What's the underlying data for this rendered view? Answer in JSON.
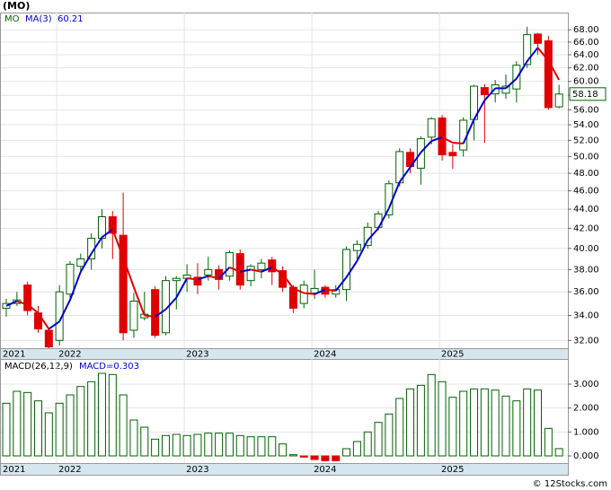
{
  "chart_data": [
    {
      "type": "candlestick",
      "title": "(MO)",
      "categories": [
        "2021",
        null,
        null,
        null,
        null,
        "2022",
        null,
        null,
        null,
        null,
        null,
        null,
        null,
        null,
        null,
        null,
        null,
        "2023",
        null,
        null,
        null,
        null,
        null,
        null,
        null,
        null,
        null,
        null,
        null,
        "2024",
        null,
        null,
        null,
        null,
        null,
        null,
        null,
        null,
        null,
        null,
        null,
        "2025",
        null,
        null,
        null,
        null,
        null,
        null,
        null,
        null,
        null,
        null,
        null
      ],
      "series": [
        {
          "name": "MO",
          "up_color": "#006400",
          "down_color": "#e00000",
          "open": [
            34.6,
            35,
            36.6,
            34.2,
            32.8,
            32,
            35.8,
            38.3,
            39,
            41,
            43.2,
            41.3,
            32.8,
            33.8,
            36.2,
            32.6,
            37,
            37.2,
            37.3,
            37.5,
            38,
            37.4,
            39.5,
            37,
            38,
            38.9,
            37.9,
            36.4,
            35,
            35.9,
            36.4,
            35.8,
            36.2,
            39.8,
            40.3,
            42.1,
            43.4,
            46.9,
            50.5,
            48.6,
            52.4,
            54.9,
            50.5,
            50.8,
            54.7,
            59.1,
            58.2,
            58.3,
            58.9,
            62.5,
            67.3,
            66.2,
            56.4
          ],
          "high": [
            35.4,
            36,
            36.9,
            34.8,
            33,
            36.6,
            38.8,
            39.5,
            41.5,
            44,
            43.8,
            45.8,
            35.9,
            36,
            36.5,
            37.4,
            37.4,
            38.5,
            38.6,
            39.2,
            38.4,
            39.8,
            39.9,
            38.5,
            39,
            39.2,
            38.3,
            36.6,
            37,
            38,
            36.6,
            36.6,
            40.2,
            40.8,
            42.6,
            43.8,
            47.2,
            51,
            51,
            52.5,
            55,
            55.3,
            51.5,
            55,
            59.5,
            59.6,
            60.2,
            61,
            63,
            68.5,
            67.5,
            67,
            59.5
          ],
          "low": [
            33.9,
            34.8,
            34,
            32.6,
            31.4,
            31.6,
            35.5,
            37.8,
            38,
            40,
            39,
            32,
            32.2,
            33.6,
            32.2,
            32.4,
            34.5,
            36,
            35.8,
            37,
            36.2,
            37,
            36.2,
            36.5,
            37.2,
            36.6,
            36,
            34.2,
            34.6,
            35.4,
            35.5,
            35.5,
            35.2,
            39,
            40,
            41.8,
            43,
            46.5,
            48,
            46.7,
            51.5,
            49.5,
            48.5,
            50,
            52,
            51.7,
            57,
            57.5,
            57,
            62,
            64,
            56,
            56.2
          ],
          "close": [
            35,
            35.3,
            34.4,
            32.9,
            31.5,
            36,
            38.5,
            39,
            41,
            43.2,
            41.5,
            32.6,
            35.2,
            34.1,
            32.4,
            37,
            37.2,
            37.5,
            36.6,
            38,
            37.1,
            39.6,
            36.6,
            38.3,
            38.6,
            37.8,
            36.4,
            34.6,
            36.6,
            36.3,
            35.8,
            36.2,
            39.9,
            40.4,
            42.1,
            43.5,
            46.8,
            50.6,
            48.8,
            52.2,
            54.8,
            50.2,
            50.1,
            54.6,
            59.3,
            58.1,
            59.5,
            59.3,
            62.4,
            67.2,
            65.8,
            56.3,
            58.18
          ]
        }
      ],
      "ma": {
        "name": "MA(3)",
        "up_color": "#0000cc",
        "down_color": "#e00000",
        "values": [
          34.8,
          35.2,
          34.9,
          34.2,
          32.9,
          33.5,
          35.3,
          37.8,
          39.5,
          41.1,
          41.9,
          39.1,
          36.4,
          34,
          33.9,
          34.5,
          35.5,
          37.2,
          37.1,
          37.4,
          37.2,
          38.2,
          37.8,
          38,
          37.8,
          38.2,
          37.6,
          36.3,
          35.9,
          35.8,
          36.2,
          36.1,
          37.3,
          38.8,
          40.8,
          42,
          44.1,
          47,
          48.7,
          50.5,
          51.9,
          52.4,
          51.7,
          51.6,
          54.7,
          57.3,
          59,
          59,
          60.4,
          63,
          65.1,
          63.1,
          60.21
        ]
      },
      "ylim": [
        31.4,
        70.9
      ],
      "log_scale": true,
      "grid": true,
      "yticks": [
        {
          "value": 32,
          "label": "32.00"
        },
        {
          "value": 34,
          "label": "34.00"
        },
        {
          "value": 36,
          "label": "36.00"
        },
        {
          "value": 38,
          "label": "38.00"
        },
        {
          "value": 40,
          "label": "40.00"
        },
        {
          "value": 42,
          "label": "42.00"
        },
        {
          "value": 44,
          "label": "44.00"
        },
        {
          "value": 46,
          "label": "46.00"
        },
        {
          "value": 48,
          "label": "48.00"
        },
        {
          "value": 50,
          "label": "50.00"
        },
        {
          "value": 52,
          "label": "52.00"
        },
        {
          "value": 54,
          "label": "54.00"
        },
        {
          "value": 56,
          "label": "56.00"
        },
        {
          "value": 58,
          "label": "58.00"
        },
        {
          "value": 60,
          "label": "60.00"
        },
        {
          "value": 62,
          "label": "62.00"
        },
        {
          "value": 64,
          "label": "64.00"
        },
        {
          "value": 66,
          "label": "66.00"
        },
        {
          "value": 68,
          "label": "68.00"
        }
      ]
    },
    {
      "type": "bar",
      "title": "MACD(26,12,9)",
      "legend": "MACD=0.303",
      "categories": [
        "2021",
        null,
        null,
        null,
        null,
        "2022",
        null,
        null,
        null,
        null,
        null,
        null,
        null,
        null,
        null,
        null,
        null,
        "2023",
        null,
        null,
        null,
        null,
        null,
        null,
        null,
        null,
        null,
        null,
        null,
        "2024",
        null,
        null,
        null,
        null,
        null,
        null,
        null,
        null,
        null,
        null,
        null,
        "2025",
        null,
        null,
        null,
        null,
        null,
        null,
        null,
        null,
        null,
        null,
        null
      ],
      "series": [
        {
          "name": "MACD",
          "color": "#006400",
          "negative_color": "#e00000",
          "values": [
            2.2,
            2.7,
            2.65,
            2.3,
            1.8,
            2.2,
            2.55,
            2.9,
            3.1,
            3.45,
            3.4,
            2.55,
            1.5,
            1.2,
            0.7,
            0.85,
            0.9,
            0.85,
            0.9,
            0.95,
            0.95,
            0.95,
            0.85,
            0.8,
            0.8,
            0.8,
            0.5,
            0.05,
            -0.05,
            -0.15,
            -0.2,
            -0.2,
            0.3,
            0.6,
            1.0,
            1.4,
            1.75,
            2.4,
            2.8,
            2.95,
            3.4,
            3.1,
            2.45,
            2.7,
            2.8,
            2.8,
            2.75,
            2.5,
            2.3,
            2.8,
            2.75,
            1.15,
            0.303
          ]
        }
      ],
      "ylim": [
        -0.3,
        4.05
      ],
      "grid": true,
      "yticks": [
        {
          "value": 0,
          "label": "0.000"
        },
        {
          "value": 1,
          "label": "1.000"
        },
        {
          "value": 2,
          "label": "2.000"
        },
        {
          "value": 3,
          "label": "3.000"
        }
      ]
    },
    {
      "type": "footer",
      "text": "© 12Stocks.com"
    }
  ]
}
